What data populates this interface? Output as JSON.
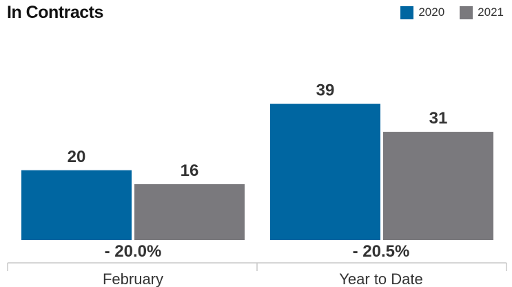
{
  "chart_data": {
    "type": "bar",
    "title": "In Contracts",
    "categories": [
      "February",
      "Year to Date"
    ],
    "series": [
      {
        "name": "2020",
        "values": [
          20,
          39
        ],
        "color": "#0066a1"
      },
      {
        "name": "2021",
        "values": [
          16,
          31
        ],
        "color": "#7a797d"
      }
    ],
    "changes": [
      "- 20.0%",
      "- 20.5%"
    ],
    "ylim": [
      0,
      40
    ],
    "legend_position": "top-right",
    "grid": false
  }
}
